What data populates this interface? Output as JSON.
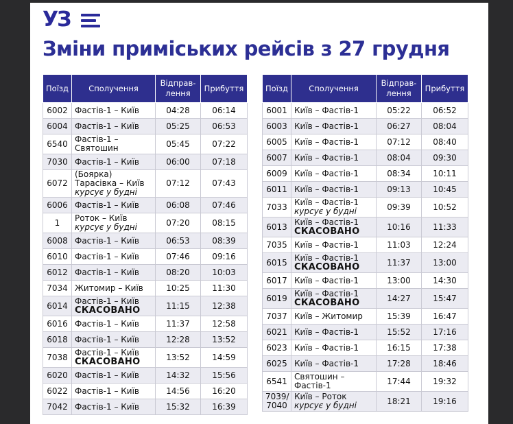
{
  "logo": {
    "text": "УЗ"
  },
  "title": "Зміни приміських рейсів з 27 грудня",
  "columns": {
    "train": "Поїзд",
    "route": "Сполучення",
    "depart": "Відправ-лення",
    "arrive": "Прибуття"
  },
  "left_rows": [
    {
      "train": "6002",
      "route": "Фастів-1 – Київ",
      "note": "",
      "status": "",
      "depart": "04:28",
      "arrive": "06:14"
    },
    {
      "train": "6004",
      "route": "Фастів-1 – Київ",
      "note": "",
      "status": "",
      "depart": "05:25",
      "arrive": "06:53"
    },
    {
      "train": "6540",
      "route": "Фастів-1 – Святошин",
      "note": "",
      "status": "",
      "depart": "05:45",
      "arrive": "07:22"
    },
    {
      "train": "7030",
      "route": "Фастів-1 – Київ",
      "note": "",
      "status": "",
      "depart": "06:00",
      "arrive": "07:18"
    },
    {
      "train": "6072",
      "route": "(Боярка) Тарасівка – Київ",
      "note": "курсує у будні",
      "status": "",
      "depart": "07:12",
      "arrive": "07:43"
    },
    {
      "train": "6006",
      "route": "Фастів-1 – Київ",
      "note": "",
      "status": "",
      "depart": "06:08",
      "arrive": "07:46"
    },
    {
      "train": "1",
      "route": "Роток – Київ",
      "note": "курсує у будні",
      "status": "",
      "depart": "07:20",
      "arrive": "08:15"
    },
    {
      "train": "6008",
      "route": "Фастів-1 – Київ",
      "note": "",
      "status": "",
      "depart": "06:53",
      "arrive": "08:39"
    },
    {
      "train": "6010",
      "route": "Фастів-1 – Київ",
      "note": "",
      "status": "",
      "depart": "07:46",
      "arrive": "09:16"
    },
    {
      "train": "6012",
      "route": "Фастів-1 – Київ",
      "note": "",
      "status": "",
      "depart": "08:20",
      "arrive": "10:03"
    },
    {
      "train": "7034",
      "route": "Житомир – Київ",
      "note": "",
      "status": "",
      "depart": "10:25",
      "arrive": "11:30"
    },
    {
      "train": "6014",
      "route": "Фастів-1 – Київ",
      "note": "",
      "status": "СКАСОВАНО",
      "depart": "11:15",
      "arrive": "12:38"
    },
    {
      "train": "6016",
      "route": "Фастів-1 – Київ",
      "note": "",
      "status": "",
      "depart": "11:37",
      "arrive": "12:58"
    },
    {
      "train": "6018",
      "route": "Фастів-1 – Київ",
      "note": "",
      "status": "",
      "depart": "12:28",
      "arrive": "13:52"
    },
    {
      "train": "7038",
      "route": "Фастів-1 – Київ",
      "note": "",
      "status": "СКАСОВАНО",
      "depart": "13:52",
      "arrive": "14:59"
    },
    {
      "train": "6020",
      "route": "Фастів-1 – Київ",
      "note": "",
      "status": "",
      "depart": "14:32",
      "arrive": "15:56"
    },
    {
      "train": "6022",
      "route": "Фастів-1 – Київ",
      "note": "",
      "status": "",
      "depart": "14:56",
      "arrive": "16:20"
    },
    {
      "train": "7042",
      "route": "Фастів-1 – Київ",
      "note": "",
      "status": "",
      "depart": "15:32",
      "arrive": "16:39"
    }
  ],
  "right_rows": [
    {
      "train": "6001",
      "route": "Київ – Фастів-1",
      "note": "",
      "status": "",
      "depart": "05:22",
      "arrive": "06:52"
    },
    {
      "train": "6003",
      "route": "Київ – Фастів-1",
      "note": "",
      "status": "",
      "depart": "06:27",
      "arrive": "08:04"
    },
    {
      "train": "6005",
      "route": "Київ – Фастів-1",
      "note": "",
      "status": "",
      "depart": "07:12",
      "arrive": "08:40"
    },
    {
      "train": "6007",
      "route": "Київ – Фастів-1",
      "note": "",
      "status": "",
      "depart": "08:04",
      "arrive": "09:30"
    },
    {
      "train": "6009",
      "route": "Київ – Фастів-1",
      "note": "",
      "status": "",
      "depart": "08:34",
      "arrive": "10:11"
    },
    {
      "train": "6011",
      "route": "Київ – Фастів-1",
      "note": "",
      "status": "",
      "depart": "09:13",
      "arrive": "10:45"
    },
    {
      "train": "7033",
      "route": "Київ – Фастів-1",
      "note": "курсує у будні",
      "status": "",
      "depart": "09:39",
      "arrive": "10:52"
    },
    {
      "train": "6013",
      "route": "Київ – Фастів-1",
      "note": "",
      "status": "СКАСОВАНО",
      "depart": "10:16",
      "arrive": "11:33"
    },
    {
      "train": "7035",
      "route": "Київ – Фастів-1",
      "note": "",
      "status": "",
      "depart": "11:03",
      "arrive": "12:24"
    },
    {
      "train": "6015",
      "route": "Київ – Фастів-1",
      "note": "",
      "status": "СКАСОВАНО",
      "depart": "11:37",
      "arrive": "13:00"
    },
    {
      "train": "6017",
      "route": "Київ – Фастів-1",
      "note": "",
      "status": "",
      "depart": "13:00",
      "arrive": "14:30"
    },
    {
      "train": "6019",
      "route": "Київ – Фастів-1",
      "note": "",
      "status": "СКАСОВАНО",
      "depart": "14:27",
      "arrive": "15:47"
    },
    {
      "train": "7037",
      "route": "Київ – Житомир",
      "note": "",
      "status": "",
      "depart": "15:39",
      "arrive": "16:47"
    },
    {
      "train": "6021",
      "route": "Київ – Фастів-1",
      "note": "",
      "status": "",
      "depart": "15:52",
      "arrive": "17:16"
    },
    {
      "train": "6023",
      "route": "Київ – Фастів-1",
      "note": "",
      "status": "",
      "depart": "16:15",
      "arrive": "17:38"
    },
    {
      "train": "6025",
      "route": "Київ – Фастів-1",
      "note": "",
      "status": "",
      "depart": "17:28",
      "arrive": "18:46"
    },
    {
      "train": "6541",
      "route": "Святошин – Фастів-1",
      "note": "",
      "status": "",
      "depart": "17:44",
      "arrive": "19:32"
    },
    {
      "train": "7039/ 7040",
      "route": "Київ – Роток",
      "note": "курсує у будні",
      "status": "",
      "depart": "18:21",
      "arrive": "19:16"
    }
  ],
  "colors": {
    "header_bg": "#2e2f8e",
    "title": "#2c2f95",
    "stripe": "#ebebf2"
  }
}
